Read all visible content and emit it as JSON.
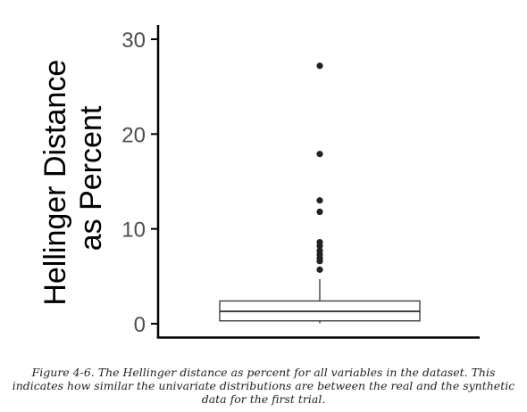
{
  "chart_data": {
    "type": "box",
    "ylabel": [
      "Hellinger Distance",
      "as Percent"
    ],
    "ylim": [
      0,
      30
    ],
    "yticks": [
      0,
      10,
      20,
      30
    ],
    "ytick_labels": [
      "0",
      "10",
      "20",
      "30"
    ],
    "box": {
      "whisker_low": 0.05,
      "q1": 0.3,
      "median": 1.3,
      "q3": 2.4,
      "whisker_high": 4.7
    },
    "outliers": [
      27.2,
      17.9,
      13.0,
      11.8,
      8.6,
      8.2,
      7.7,
      7.3,
      6.9,
      6.6,
      5.7
    ],
    "grid": false
  },
  "caption": "Figure 4-6. The Hellinger distance as percent for all variables in the dataset. This indicates how similar the univariate distributions are between the real and the synthetic data for the first trial."
}
